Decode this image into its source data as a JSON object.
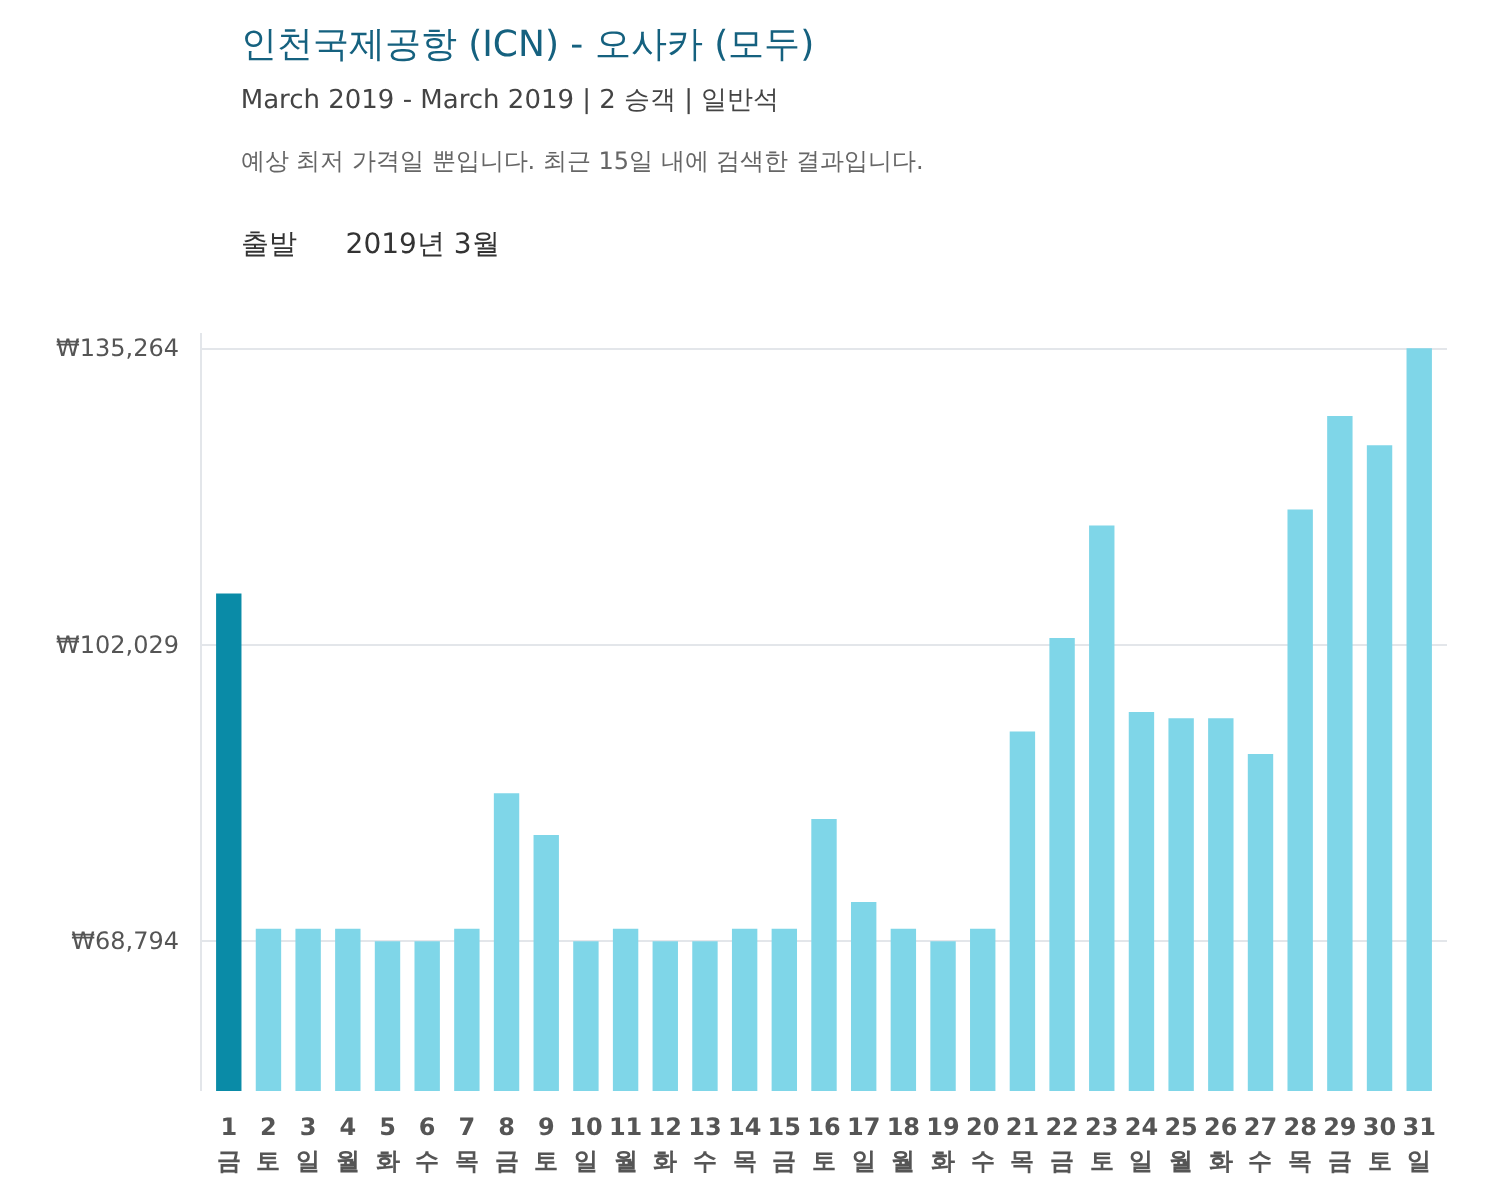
{
  "chart_data": {
    "type": "bar",
    "title": "인천국제공항 (ICN) - 오사카 (모두)",
    "subtitle": "March 2019 - March 2019 | 2 승객 | 일반석",
    "annotations": [
      "예상 최저 가격일 뿐입니다. 최근 15일 내에 검색한 결과입니다.",
      "출발",
      "2019년 3월"
    ],
    "categories": [
      "1\n금",
      "2\n토",
      "3\n일",
      "4\n월",
      "5\n화",
      "6\n수",
      "7\n목",
      "8\n금",
      "9\n토",
      "10\n일",
      "11\n월",
      "12\n화",
      "13\n수",
      "14\n목",
      "15\n금",
      "16\n토",
      "17\n일",
      "18\n월",
      "19\n화",
      "20\n수",
      "21\n목",
      "22\n금",
      "23\n토",
      "24\n일",
      "25\n월",
      "26\n화",
      "27\n수",
      "28\n목",
      "29\n금",
      "30\n토",
      "31\n일"
    ],
    "values": [
      107800,
      70200,
      70200,
      70200,
      68800,
      68800,
      70200,
      85400,
      80700,
      68800,
      70200,
      68800,
      68800,
      70200,
      70200,
      82500,
      73200,
      70200,
      68800,
      70200,
      92300,
      102800,
      115400,
      94500,
      93800,
      93800,
      89800,
      117200,
      127700,
      124400,
      135300
    ],
    "colors": [
      "#0a8ba7",
      "#7fd6e8",
      "#7fd6e8",
      "#7fd6e8",
      "#7fd6e8",
      "#7fd6e8",
      "#7fd6e8",
      "#7fd6e8",
      "#7fd6e8",
      "#7fd6e8",
      "#7fd6e8",
      "#7fd6e8",
      "#7fd6e8",
      "#7fd6e8",
      "#7fd6e8",
      "#7fd6e8",
      "#7fd6e8",
      "#7fd6e8",
      "#7fd6e8",
      "#7fd6e8",
      "#7fd6e8",
      "#7fd6e8",
      "#7fd6e8",
      "#7fd6e8",
      "#7fd6e8",
      "#7fd6e8",
      "#7fd6e8",
      "#7fd6e8",
      "#7fd6e8",
      "#7fd6e8",
      "#7fd6e8"
    ],
    "ylim": [
      52000,
      137000
    ],
    "yticks": [
      {
        "value": 68794,
        "label": "₩68,794"
      },
      {
        "value": 102029,
        "label": "₩102,029"
      },
      {
        "value": 135264,
        "label": "₩135,264"
      }
    ],
    "grid": "y"
  }
}
